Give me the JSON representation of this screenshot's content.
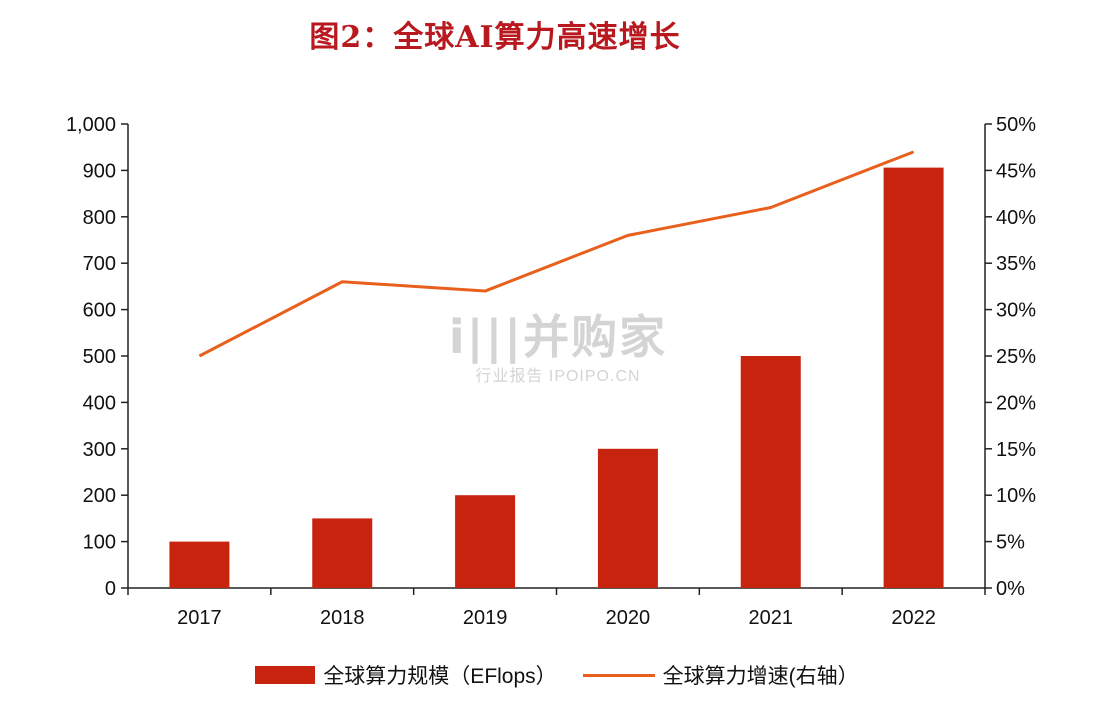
{
  "chart_data": {
    "type": "bar",
    "title": "图2：全球AI算力高速增长",
    "categories": [
      "2017",
      "2018",
      "2019",
      "2020",
      "2021",
      "2022"
    ],
    "series": [
      {
        "name": "全球算力规模（EFlops）",
        "type": "bar",
        "axis": "left",
        "values": [
          100,
          150,
          200,
          300,
          500,
          906
        ],
        "color": "#c8230e"
      },
      {
        "name": "全球算力增速(右轴）",
        "type": "line",
        "axis": "right",
        "values": [
          0.25,
          0.33,
          0.32,
          0.38,
          0.41,
          0.47
        ],
        "color": "#e8601c"
      }
    ],
    "left_axis": {
      "min": 0,
      "max": 1000,
      "step": 100,
      "ticks": [
        "0",
        "100",
        "200",
        "300",
        "400",
        "500",
        "600",
        "700",
        "800",
        "900",
        "1,000"
      ]
    },
    "right_axis": {
      "min": 0,
      "max": 0.5,
      "step": 0.05,
      "ticks": [
        "0%",
        "5%",
        "10%",
        "15%",
        "20%",
        "25%",
        "30%",
        "35%",
        "40%",
        "45%",
        "50%"
      ]
    },
    "grid": false,
    "legend": "bottom-center"
  },
  "watermark": {
    "main": "i|||并购家",
    "sub": "行业报告 IPOIPO.CN"
  }
}
